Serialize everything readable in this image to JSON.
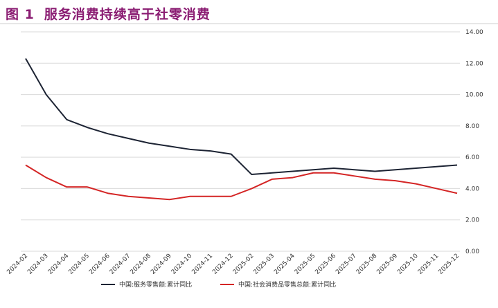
{
  "figure": {
    "number": "图 1",
    "title": "服务消费持续高于社零消费"
  },
  "chart_data": {
    "type": "line",
    "categories": [
      "2024-02",
      "2024-03",
      "2024-04",
      "2024-05",
      "2024-06",
      "2024-07",
      "2024-08",
      "2024-09",
      "2024-10",
      "2024-11",
      "2024-12",
      "2025-02",
      "2025-03",
      "2025-04",
      "2025-05",
      "2025-06",
      "2025-07",
      "2025-08",
      "2025-09",
      "2025-10",
      "2025-11",
      "2025-12"
    ],
    "y_ticks": [
      "0.00",
      "2.00",
      "4.00",
      "6.00",
      "8.00",
      "10.00",
      "12.00",
      "14.00"
    ],
    "ylim": [
      0,
      14
    ],
    "grid": true,
    "y_axis_side": "right",
    "legend_position": "bottom",
    "series": [
      {
        "name": "中国:服务零售额:累计同比",
        "color": "#1c2333",
        "values": [
          12.3,
          10.0,
          8.4,
          7.9,
          7.5,
          7.2,
          6.9,
          6.7,
          6.5,
          6.4,
          6.2,
          4.9,
          5.0,
          5.1,
          5.2,
          5.3,
          5.2,
          5.1,
          5.2,
          5.3,
          5.4,
          5.5
        ]
      },
      {
        "name": "中国:社会消费品零售总额:累计同比",
        "color": "#d42525",
        "values": [
          5.5,
          4.7,
          4.1,
          4.1,
          3.7,
          3.5,
          3.4,
          3.3,
          3.5,
          3.5,
          3.5,
          4.0,
          4.6,
          4.7,
          5.0,
          5.0,
          4.8,
          4.6,
          4.5,
          4.3,
          4.0,
          3.7
        ]
      }
    ]
  }
}
